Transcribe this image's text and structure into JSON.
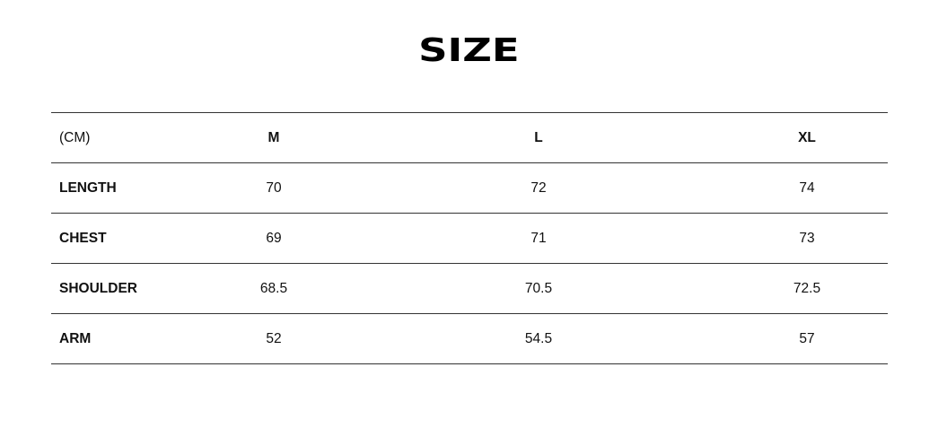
{
  "title": "SIZE",
  "table": {
    "header": [
      "(CM)",
      "M",
      "L",
      "XL"
    ],
    "rows": [
      [
        "LENGTH",
        "70",
        "72",
        "74"
      ],
      [
        "CHEST",
        "69",
        "71",
        "73"
      ],
      [
        "SHOULDER",
        "68.5",
        "70.5",
        "72.5"
      ],
      [
        "ARM",
        "52",
        "54.5",
        "57"
      ]
    ]
  }
}
